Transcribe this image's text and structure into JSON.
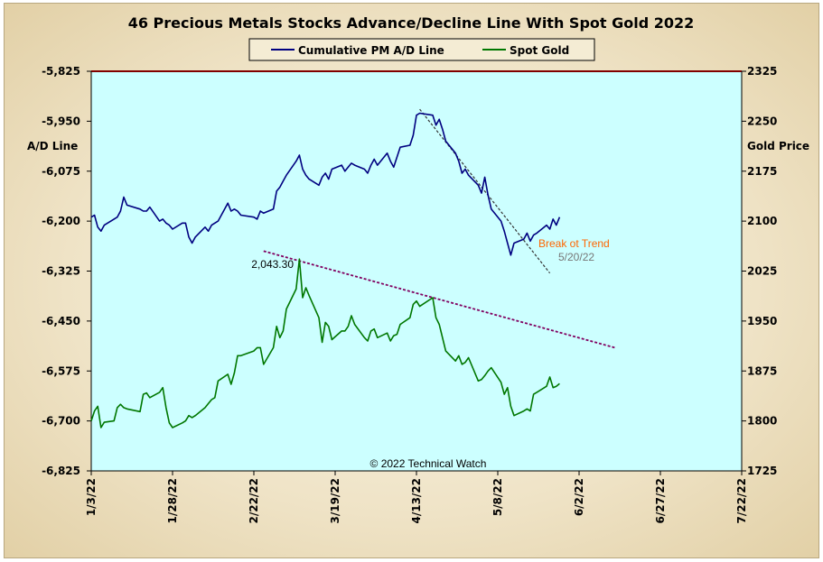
{
  "chart_data": {
    "type": "line",
    "title": "46 Precious Metals Stocks Advance/Decline Line With Spot Gold 2022",
    "left_axis_label": "A/D Line",
    "right_axis_label": "Gold Price",
    "left_ylim": [
      -6825,
      -5825
    ],
    "left_ticks": [
      "-5,825",
      "-5,950",
      "-6,075",
      "-6,200",
      "-6,325",
      "-6,450",
      "-6,575",
      "-6,700",
      "-6,825"
    ],
    "right_ylim": [
      1725,
      2325
    ],
    "right_ticks": [
      "2325",
      "2250",
      "2175",
      "2100",
      "2025",
      "1950",
      "1875",
      "1800",
      "1725"
    ],
    "x_ticks": [
      "1/3/22",
      "1/28/22",
      "2/22/22",
      "3/19/22",
      "4/13/22",
      "5/8/22",
      "6/2/22",
      "6/27/22",
      "7/22/22"
    ],
    "x_start": "2022-01-03",
    "x_end": "2022-07-22",
    "grid": false,
    "legend_position": "top-center",
    "copyright": "© 2022 Technical Watch",
    "colors": {
      "plot_background": "#ccffff",
      "ad_line": "#000080",
      "gold_line": "#007700",
      "ad_trend": "#333333",
      "gold_trend": "#800060",
      "top_border": "#800000",
      "break_label": "#ff6600"
    },
    "series": [
      {
        "name": "Cumulative PM A/D Line",
        "axis": "left",
        "points": [
          [
            "2022-01-03",
            -6190
          ],
          [
            "2022-01-04",
            -6185
          ],
          [
            "2022-01-05",
            -6215
          ],
          [
            "2022-01-06",
            -6225
          ],
          [
            "2022-01-07",
            -6210
          ],
          [
            "2022-01-10",
            -6195
          ],
          [
            "2022-01-11",
            -6190
          ],
          [
            "2022-01-12",
            -6175
          ],
          [
            "2022-01-13",
            -6140
          ],
          [
            "2022-01-14",
            -6160
          ],
          [
            "2022-01-18",
            -6170
          ],
          [
            "2022-01-19",
            -6175
          ],
          [
            "2022-01-20",
            -6175
          ],
          [
            "2022-01-21",
            -6165
          ],
          [
            "2022-01-24",
            -6200
          ],
          [
            "2022-01-25",
            -6195
          ],
          [
            "2022-01-26",
            -6205
          ],
          [
            "2022-01-27",
            -6210
          ],
          [
            "2022-01-28",
            -6220
          ],
          [
            "2022-01-31",
            -6205
          ],
          [
            "2022-02-01",
            -6205
          ],
          [
            "2022-02-02",
            -6240
          ],
          [
            "2022-02-03",
            -6255
          ],
          [
            "2022-02-04",
            -6240
          ],
          [
            "2022-02-07",
            -6215
          ],
          [
            "2022-02-08",
            -6225
          ],
          [
            "2022-02-09",
            -6210
          ],
          [
            "2022-02-10",
            -6205
          ],
          [
            "2022-02-11",
            -6200
          ],
          [
            "2022-02-14",
            -6155
          ],
          [
            "2022-02-15",
            -6175
          ],
          [
            "2022-02-16",
            -6170
          ],
          [
            "2022-02-17",
            -6175
          ],
          [
            "2022-02-18",
            -6185
          ],
          [
            "2022-02-22",
            -6190
          ],
          [
            "2022-02-23",
            -6195
          ],
          [
            "2022-02-24",
            -6175
          ],
          [
            "2022-02-25",
            -6180
          ],
          [
            "2022-02-28",
            -6170
          ],
          [
            "2022-03-01",
            -6125
          ],
          [
            "2022-03-02",
            -6115
          ],
          [
            "2022-03-03",
            -6100
          ],
          [
            "2022-03-04",
            -6085
          ],
          [
            "2022-03-07",
            -6050
          ],
          [
            "2022-03-08",
            -6035
          ],
          [
            "2022-03-09",
            -6070
          ],
          [
            "2022-03-10",
            -6085
          ],
          [
            "2022-03-11",
            -6095
          ],
          [
            "2022-03-14",
            -6110
          ],
          [
            "2022-03-15",
            -6090
          ],
          [
            "2022-03-16",
            -6080
          ],
          [
            "2022-03-17",
            -6095
          ],
          [
            "2022-03-18",
            -6070
          ],
          [
            "2022-03-21",
            -6060
          ],
          [
            "2022-03-22",
            -6075
          ],
          [
            "2022-03-23",
            -6065
          ],
          [
            "2022-03-24",
            -6055
          ],
          [
            "2022-03-25",
            -6060
          ],
          [
            "2022-03-28",
            -6070
          ],
          [
            "2022-03-29",
            -6080
          ],
          [
            "2022-03-30",
            -6060
          ],
          [
            "2022-03-31",
            -6045
          ],
          [
            "2022-04-01",
            -6060
          ],
          [
            "2022-04-04",
            -6030
          ],
          [
            "2022-04-05",
            -6050
          ],
          [
            "2022-04-06",
            -6065
          ],
          [
            "2022-04-07",
            -6040
          ],
          [
            "2022-04-08",
            -6015
          ],
          [
            "2022-04-11",
            -6010
          ],
          [
            "2022-04-12",
            -5985
          ],
          [
            "2022-04-13",
            -5935
          ],
          [
            "2022-04-14",
            -5930
          ],
          [
            "2022-04-18",
            -5935
          ],
          [
            "2022-04-19",
            -5960
          ],
          [
            "2022-04-20",
            -5945
          ],
          [
            "2022-04-21",
            -5970
          ],
          [
            "2022-04-22",
            -6000
          ],
          [
            "2022-04-25",
            -6030
          ],
          [
            "2022-04-26",
            -6050
          ],
          [
            "2022-04-27",
            -6080
          ],
          [
            "2022-04-28",
            -6070
          ],
          [
            "2022-04-29",
            -6085
          ],
          [
            "2022-05-02",
            -6110
          ],
          [
            "2022-05-03",
            -6130
          ],
          [
            "2022-05-04",
            -6090
          ],
          [
            "2022-05-05",
            -6135
          ],
          [
            "2022-05-06",
            -6170
          ],
          [
            "2022-05-09",
            -6200
          ],
          [
            "2022-05-10",
            -6225
          ],
          [
            "2022-05-11",
            -6255
          ],
          [
            "2022-05-12",
            -6285
          ],
          [
            "2022-05-13",
            -6255
          ],
          [
            "2022-05-16",
            -6245
          ],
          [
            "2022-05-17",
            -6230
          ],
          [
            "2022-05-18",
            -6250
          ],
          [
            "2022-05-19",
            -6235
          ],
          [
            "2022-05-20",
            -6230
          ],
          [
            "2022-05-23",
            -6210
          ],
          [
            "2022-05-24",
            -6220
          ],
          [
            "2022-05-25",
            -6195
          ],
          [
            "2022-05-26",
            -6210
          ],
          [
            "2022-05-27",
            -6190
          ]
        ]
      },
      {
        "name": "Spot Gold",
        "axis": "right",
        "points": [
          [
            "2022-01-03",
            1800
          ],
          [
            "2022-01-04",
            1815
          ],
          [
            "2022-01-05",
            1822
          ],
          [
            "2022-01-06",
            1790
          ],
          [
            "2022-01-07",
            1798
          ],
          [
            "2022-01-10",
            1800
          ],
          [
            "2022-01-11",
            1820
          ],
          [
            "2022-01-12",
            1825
          ],
          [
            "2022-01-13",
            1820
          ],
          [
            "2022-01-14",
            1818
          ],
          [
            "2022-01-18",
            1814
          ],
          [
            "2022-01-19",
            1840
          ],
          [
            "2022-01-20",
            1842
          ],
          [
            "2022-01-21",
            1835
          ],
          [
            "2022-01-24",
            1843
          ],
          [
            "2022-01-25",
            1850
          ],
          [
            "2022-01-26",
            1820
          ],
          [
            "2022-01-27",
            1797
          ],
          [
            "2022-01-28",
            1790
          ],
          [
            "2022-01-31",
            1797
          ],
          [
            "2022-02-01",
            1800
          ],
          [
            "2022-02-02",
            1808
          ],
          [
            "2022-02-03",
            1805
          ],
          [
            "2022-02-04",
            1808
          ],
          [
            "2022-02-07",
            1820
          ],
          [
            "2022-02-08",
            1826
          ],
          [
            "2022-02-09",
            1832
          ],
          [
            "2022-02-10",
            1835
          ],
          [
            "2022-02-11",
            1860
          ],
          [
            "2022-02-14",
            1870
          ],
          [
            "2022-02-15",
            1855
          ],
          [
            "2022-02-16",
            1872
          ],
          [
            "2022-02-17",
            1898
          ],
          [
            "2022-02-18",
            1898
          ],
          [
            "2022-02-22",
            1905
          ],
          [
            "2022-02-23",
            1910
          ],
          [
            "2022-02-24",
            1910
          ],
          [
            "2022-02-25",
            1885
          ],
          [
            "2022-02-28",
            1910
          ],
          [
            "2022-03-01",
            1942
          ],
          [
            "2022-03-02",
            1925
          ],
          [
            "2022-03-03",
            1935
          ],
          [
            "2022-03-04",
            1968
          ],
          [
            "2022-03-07",
            1998
          ],
          [
            "2022-03-08",
            2043
          ],
          [
            "2022-03-09",
            1985
          ],
          [
            "2022-03-10",
            2000
          ],
          [
            "2022-03-11",
            1988
          ],
          [
            "2022-03-14",
            1955
          ],
          [
            "2022-03-15",
            1918
          ],
          [
            "2022-03-16",
            1948
          ],
          [
            "2022-03-17",
            1942
          ],
          [
            "2022-03-18",
            1922
          ],
          [
            "2022-03-21",
            1935
          ],
          [
            "2022-03-22",
            1935
          ],
          [
            "2022-03-23",
            1942
          ],
          [
            "2022-03-24",
            1958
          ],
          [
            "2022-03-25",
            1945
          ],
          [
            "2022-03-28",
            1925
          ],
          [
            "2022-03-29",
            1920
          ],
          [
            "2022-03-30",
            1935
          ],
          [
            "2022-03-31",
            1938
          ],
          [
            "2022-04-01",
            1925
          ],
          [
            "2022-04-04",
            1932
          ],
          [
            "2022-04-05",
            1920
          ],
          [
            "2022-04-06",
            1928
          ],
          [
            "2022-04-07",
            1930
          ],
          [
            "2022-04-08",
            1945
          ],
          [
            "2022-04-11",
            1955
          ],
          [
            "2022-04-12",
            1975
          ],
          [
            "2022-04-13",
            1980
          ],
          [
            "2022-04-14",
            1972
          ],
          [
            "2022-04-18",
            1985
          ],
          [
            "2022-04-19",
            1955
          ],
          [
            "2022-04-20",
            1945
          ],
          [
            "2022-04-21",
            1925
          ],
          [
            "2022-04-22",
            1905
          ],
          [
            "2022-04-25",
            1890
          ],
          [
            "2022-04-26",
            1898
          ],
          [
            "2022-04-27",
            1885
          ],
          [
            "2022-04-28",
            1888
          ],
          [
            "2022-04-29",
            1895
          ],
          [
            "2022-05-02",
            1860
          ],
          [
            "2022-05-03",
            1862
          ],
          [
            "2022-05-04",
            1868
          ],
          [
            "2022-05-05",
            1875
          ],
          [
            "2022-05-06",
            1880
          ],
          [
            "2022-05-09",
            1858
          ],
          [
            "2022-05-10",
            1840
          ],
          [
            "2022-05-11",
            1850
          ],
          [
            "2022-05-12",
            1822
          ],
          [
            "2022-05-13",
            1808
          ],
          [
            "2022-05-16",
            1815
          ],
          [
            "2022-05-17",
            1818
          ],
          [
            "2022-05-18",
            1815
          ],
          [
            "2022-05-19",
            1840
          ],
          [
            "2022-05-20",
            1843
          ],
          [
            "2022-05-23",
            1852
          ],
          [
            "2022-05-24",
            1866
          ],
          [
            "2022-05-25",
            1850
          ],
          [
            "2022-05-26",
            1852
          ],
          [
            "2022-05-27",
            1856
          ]
        ]
      }
    ],
    "trendlines": [
      {
        "name": "ad-trendline",
        "axis": "left",
        "from": [
          "2022-04-14",
          -5920
        ],
        "to": [
          "2022-05-24",
          -6330
        ]
      },
      {
        "name": "gold-trendline",
        "axis": "right",
        "from": [
          "2022-02-25",
          2055
        ],
        "to": [
          "2022-06-13",
          1910
        ]
      }
    ],
    "annotations": [
      {
        "name": "gold-peak-label",
        "text": "2,043.30"
      },
      {
        "name": "break-of-trend-label",
        "text": "Break ot Trend"
      },
      {
        "name": "break-date-label",
        "text": "5/20/22"
      }
    ]
  }
}
